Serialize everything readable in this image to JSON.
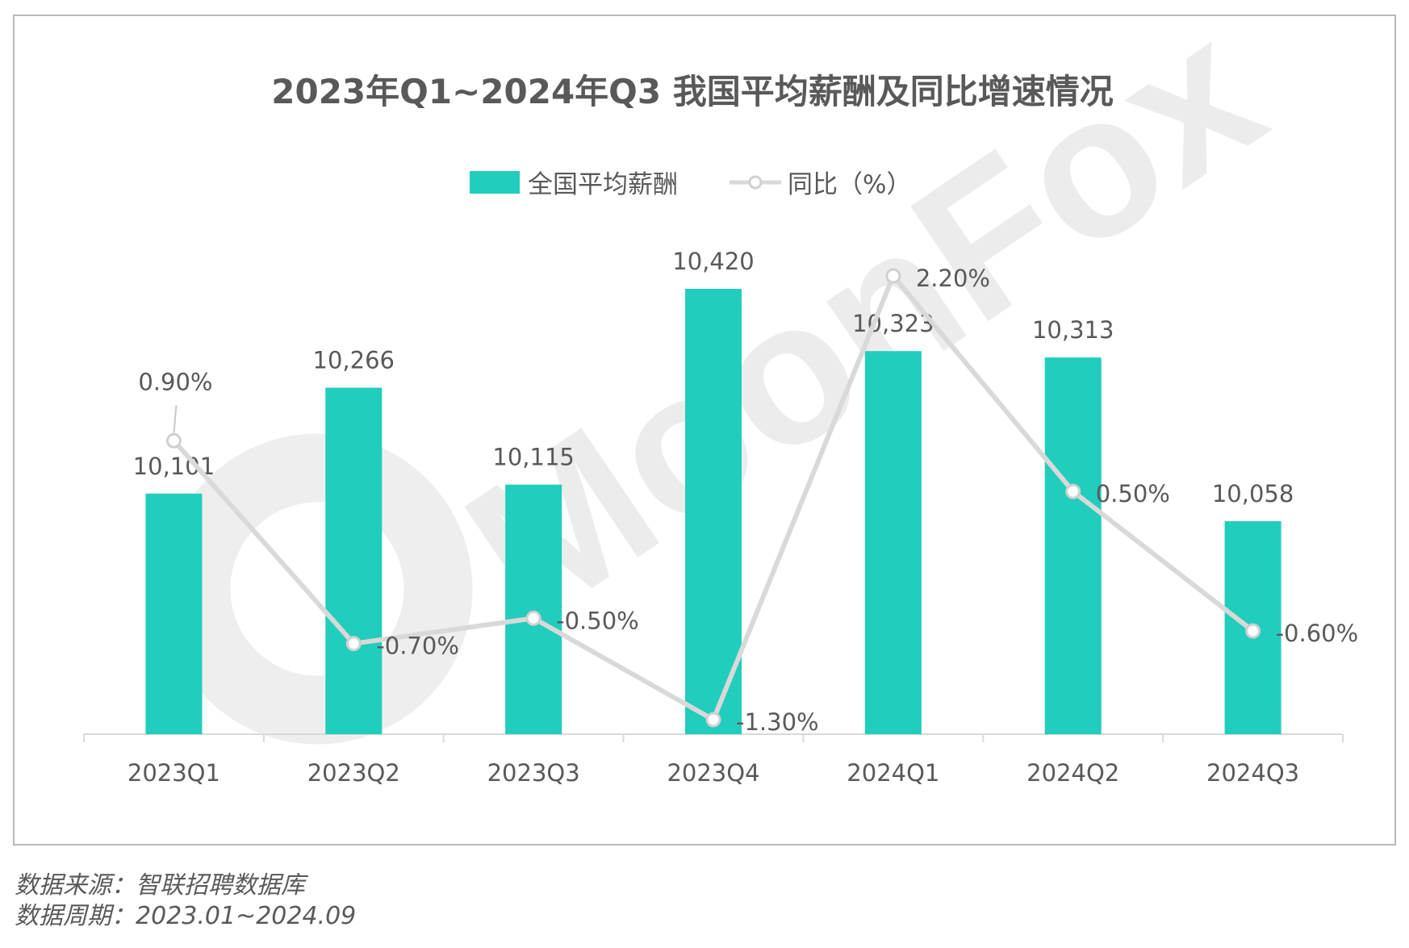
{
  "chart_data": {
    "type": "bar",
    "title": "2023年Q1~2024年Q3 我国平均薪酬及同比增速情况",
    "categories": [
      "2023Q1",
      "2023Q2",
      "2023Q3",
      "2023Q4",
      "2024Q1",
      "2024Q2",
      "2024Q3"
    ],
    "series": [
      {
        "name": "全国平均薪酬",
        "type": "bar",
        "values": [
          10101,
          10266,
          10115,
          10420,
          10323,
          10313,
          10058
        ],
        "value_labels": [
          "10,101",
          "10,266",
          "10,115",
          "10,420",
          "10,323",
          "10,313",
          "10,058"
        ],
        "color": "#21cdbd"
      },
      {
        "name": "同比（%）",
        "type": "line",
        "values": [
          0.9,
          -0.7,
          -0.5,
          -1.3,
          2.2,
          0.5,
          -0.6
        ],
        "value_labels": [
          "0.90%",
          "-0.70%",
          "-0.50%",
          "-1.30%",
          "2.20%",
          "0.50%",
          "-0.60%"
        ],
        "color": "#d9d9d9"
      }
    ],
    "grid": false,
    "legend_position": "top-center"
  },
  "watermark": "MoonFox",
  "footer": {
    "source": "数据来源：智联招聘数据库",
    "period": "数据周期：2023.01~2024.09"
  }
}
